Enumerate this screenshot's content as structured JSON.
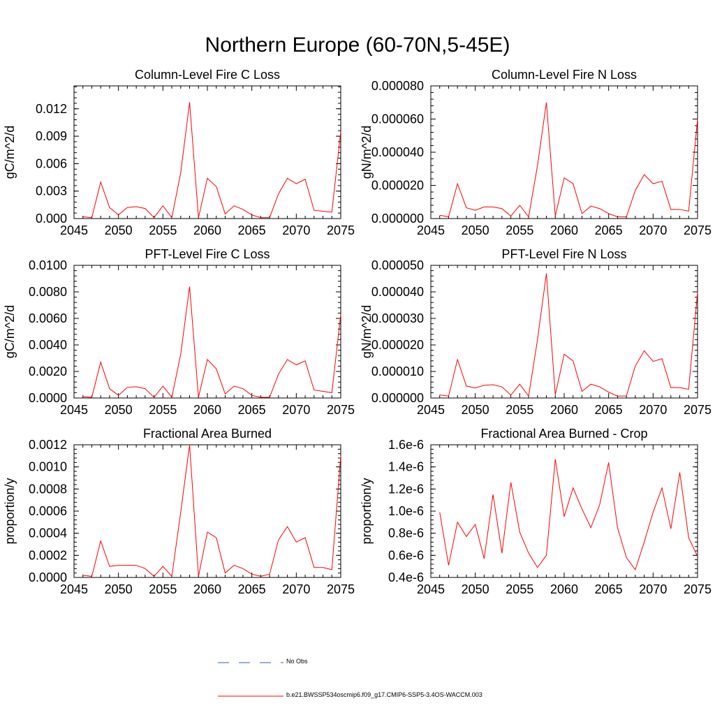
{
  "title": "Northern Europe (60-70N,5-45E)",
  "legend": {
    "obs_label": "No Obs",
    "obs_color": "#3355cc",
    "model_label": "b.e21.BWSSP534oscmip6.f09_g17.CMIP6-SSP5-3.4OS-WACCM.003",
    "model_color": "#ff0000"
  },
  "chart_data": [
    {
      "type": "line",
      "title": "Column-Level Fire C Loss",
      "ylabel": "gC/m^2/d",
      "xlim": [
        2045,
        2075
      ],
      "ylim": [
        0,
        0.0145
      ],
      "xticks": [
        2045,
        2050,
        2055,
        2060,
        2065,
        2070,
        2075
      ],
      "yticks": [
        0,
        0.003,
        0.006,
        0.009,
        0.012
      ],
      "ytick_labels": [
        "0.000",
        "0.003",
        "0.006",
        "0.009",
        "0.012"
      ],
      "x": [
        2046,
        2047,
        2048,
        2049,
        2050,
        2051,
        2052,
        2053,
        2054,
        2055,
        2056,
        2057,
        2058,
        2059,
        2060,
        2061,
        2062,
        2063,
        2064,
        2065,
        2066,
        2067,
        2068,
        2069,
        2070,
        2071,
        2072,
        2073,
        2074,
        2075
      ],
      "series": [
        {
          "name": "b.e21.BWSSP534oscmip6.f09_g17.CMIP6-SSP5-3.4OS-WACCM.003",
          "values": [
            0.0002,
            0.0001,
            0.004,
            0.0012,
            0.0004,
            0.0012,
            0.0013,
            0.0011,
            0.0001,
            0.0014,
            0.0001,
            0.005,
            0.0127,
            0.0001,
            0.0044,
            0.0035,
            0.0005,
            0.0014,
            0.001,
            0.0004,
            0.0001,
            0.0001,
            0.0027,
            0.0044,
            0.0038,
            0.0043,
            0.0009,
            0.0008,
            0.0007,
            0.0095
          ]
        }
      ]
    },
    {
      "type": "line",
      "title": "Column-Level Fire N Loss",
      "ylabel": "gN/m^2/d",
      "xlim": [
        2045,
        2075
      ],
      "ylim": [
        0,
        8e-05
      ],
      "xticks": [
        2045,
        2050,
        2055,
        2060,
        2065,
        2070,
        2075
      ],
      "yticks": [
        0,
        2e-05,
        4e-05,
        6e-05,
        8e-05
      ],
      "ytick_labels": [
        "0.000000",
        "0.000020",
        "0.000040",
        "0.000060",
        "0.000080"
      ],
      "x": [
        2046,
        2047,
        2048,
        2049,
        2050,
        2051,
        2052,
        2053,
        2054,
        2055,
        2056,
        2057,
        2058,
        2059,
        2060,
        2061,
        2062,
        2063,
        2064,
        2065,
        2066,
        2067,
        2068,
        2069,
        2070,
        2071,
        2072,
        2073,
        2074,
        2075
      ],
      "series": [
        {
          "name": "b.e21.BWSSP534oscmip6.f09_g17.CMIP6-SSP5-3.4OS-WACCM.003",
          "values": [
            2e-06,
            1e-06,
            2.1e-05,
            6.5e-06,
            5e-06,
            7e-06,
            7e-06,
            6e-06,
            1.5e-06,
            8e-06,
            1e-06,
            3.2e-05,
            7e-05,
            1.5e-06,
            2.45e-05,
            2.1e-05,
            3e-06,
            7.5e-06,
            6e-06,
            3e-06,
            1e-06,
            1e-06,
            1.7e-05,
            2.65e-05,
            2.1e-05,
            2.25e-05,
            5.5e-06,
            5.5e-06,
            4.5e-06,
            6e-05
          ]
        }
      ]
    },
    {
      "type": "line",
      "title": "PFT-Level Fire C Loss",
      "ylabel": "gC/m^2/d",
      "xlim": [
        2045,
        2075
      ],
      "ylim": [
        0,
        0.01
      ],
      "xticks": [
        2045,
        2050,
        2055,
        2060,
        2065,
        2070,
        2075
      ],
      "yticks": [
        0,
        0.002,
        0.004,
        0.006,
        0.008,
        0.01
      ],
      "ytick_labels": [
        "0.0000",
        "0.0020",
        "0.0040",
        "0.0060",
        "0.0080",
        "0.0100"
      ],
      "x": [
        2046,
        2047,
        2048,
        2049,
        2050,
        2051,
        2052,
        2053,
        2054,
        2055,
        2056,
        2057,
        2058,
        2059,
        2060,
        2061,
        2062,
        2063,
        2064,
        2065,
        2066,
        2067,
        2068,
        2069,
        2070,
        2071,
        2072,
        2073,
        2074,
        2075
      ],
      "series": [
        {
          "name": "b.e21.BWSSP534oscmip6.f09_g17.CMIP6-SSP5-3.4OS-WACCM.003",
          "values": [
            0.0001,
            5e-05,
            0.0027,
            0.0007,
            0.0002,
            0.0008,
            0.00085,
            0.0007,
            5e-05,
            0.0009,
            5e-05,
            0.0033,
            0.0084,
            5e-05,
            0.0029,
            0.0022,
            0.0003,
            0.0009,
            0.0007,
            0.0002,
            5e-05,
            5e-05,
            0.0018,
            0.0029,
            0.0025,
            0.0028,
            0.0006,
            0.0005,
            0.0004,
            0.0063
          ]
        }
      ]
    },
    {
      "type": "line",
      "title": "PFT-Level Fire N Loss",
      "ylabel": "gN/m^2/d",
      "xlim": [
        2045,
        2075
      ],
      "ylim": [
        0,
        5e-05
      ],
      "xticks": [
        2045,
        2050,
        2055,
        2060,
        2065,
        2070,
        2075
      ],
      "yticks": [
        0,
        1e-05,
        2e-05,
        3e-05,
        4e-05,
        5e-05
      ],
      "ytick_labels": [
        "0.000000",
        "0.000010",
        "0.000020",
        "0.000030",
        "0.000040",
        "0.000050"
      ],
      "x": [
        2046,
        2047,
        2048,
        2049,
        2050,
        2051,
        2052,
        2053,
        2054,
        2055,
        2056,
        2057,
        2058,
        2059,
        2060,
        2061,
        2062,
        2063,
        2064,
        2065,
        2066,
        2067,
        2068,
        2069,
        2070,
        2071,
        2072,
        2073,
        2074,
        2075
      ],
      "series": [
        {
          "name": "b.e21.BWSSP534oscmip6.f09_g17.CMIP6-SSP5-3.4OS-WACCM.003",
          "values": [
            1.2e-06,
            7e-07,
            1.45e-05,
            4.5e-06,
            3.8e-06,
            4.8e-06,
            5e-06,
            4.2e-06,
            1.1e-06,
            5.2e-06,
            7e-07,
            2.2e-05,
            4.7e-05,
            1.2e-06,
            1.65e-05,
            1.4e-05,
            2.5e-06,
            5.2e-06,
            4.2e-06,
            2.2e-06,
            7e-07,
            8e-07,
            1.21e-05,
            1.78e-05,
            1.38e-05,
            1.48e-05,
            3.9e-06,
            3.9e-06,
            3.3e-06,
            4e-05
          ]
        }
      ]
    },
    {
      "type": "line",
      "title": "Fractional Area Burned",
      "ylabel": "proportion/y",
      "xlim": [
        2045,
        2075
      ],
      "ylim": [
        0,
        0.0012
      ],
      "xticks": [
        2045,
        2050,
        2055,
        2060,
        2065,
        2070,
        2075
      ],
      "yticks": [
        0,
        0.0002,
        0.0004,
        0.0006,
        0.0008,
        0.001,
        0.0012
      ],
      "ytick_labels": [
        "0.0000",
        "0.0002",
        "0.0004",
        "0.0006",
        "0.0008",
        "0.0010",
        "0.0012"
      ],
      "x": [
        2046,
        2047,
        2048,
        2049,
        2050,
        2051,
        2052,
        2053,
        2054,
        2055,
        2056,
        2057,
        2058,
        2059,
        2060,
        2061,
        2062,
        2063,
        2064,
        2065,
        2066,
        2067,
        2068,
        2069,
        2070,
        2071,
        2072,
        2073,
        2074,
        2075
      ],
      "series": [
        {
          "name": "b.e21.BWSSP534oscmip6.f09_g17.CMIP6-SSP5-3.4OS-WACCM.003",
          "values": [
            2e-05,
            1e-05,
            0.00033,
            0.0001,
            0.00011,
            0.00011,
            0.00011,
            8e-05,
            1e-05,
            0.0001,
            1e-05,
            0.00059,
            0.0012,
            1e-05,
            0.00041,
            0.00036,
            4e-05,
            0.00011,
            8e-05,
            3e-05,
            1e-05,
            3e-05,
            0.00034,
            0.00046,
            0.00032,
            0.00036,
            9e-05,
            9e-05,
            7e-05,
            0.0011
          ]
        }
      ]
    },
    {
      "type": "line",
      "title": "Fractional Area Burned - Crop",
      "ylabel": "proportion/y",
      "xlim": [
        2045,
        2075
      ],
      "ylim": [
        4e-07,
        1.6e-06
      ],
      "xticks": [
        2045,
        2050,
        2055,
        2060,
        2065,
        2070,
        2075
      ],
      "yticks": [
        4e-07,
        6e-07,
        8e-07,
        1e-06,
        1.2e-06,
        1.4e-06,
        1.6e-06
      ],
      "ytick_labels": [
        "0.4e-6",
        "0.6e-6",
        "0.8e-6",
        "1.0e-6",
        "1.2e-6",
        "1.4e-6",
        "1.6e-6"
      ],
      "x": [
        2046,
        2047,
        2048,
        2049,
        2050,
        2051,
        2052,
        2053,
        2054,
        2055,
        2056,
        2057,
        2058,
        2059,
        2060,
        2061,
        2062,
        2063,
        2064,
        2065,
        2066,
        2067,
        2068,
        2069,
        2070,
        2071,
        2072,
        2073,
        2074,
        2075
      ],
      "series": [
        {
          "name": "b.e21.BWSSP534oscmip6.f09_g17.CMIP6-SSP5-3.4OS-WACCM.003",
          "values": [
            9.9e-07,
            5.1e-07,
            9e-07,
            7.7e-07,
            8.8e-07,
            5.7e-07,
            1.15e-06,
            6.2e-07,
            1.26e-06,
            8.1e-07,
            6.2e-07,
            4.9e-07,
            6e-07,
            1.47e-06,
            9.5e-07,
            1.21e-06,
            1.02e-06,
            8.5e-07,
            1.06e-06,
            1.44e-06,
            8.5e-07,
            5.8e-07,
            4.7e-07,
            7.2e-07,
            9.9e-07,
            1.21e-06,
            8.4e-07,
            1.35e-06,
            7.6e-07,
            5.9e-07
          ]
        }
      ]
    }
  ]
}
